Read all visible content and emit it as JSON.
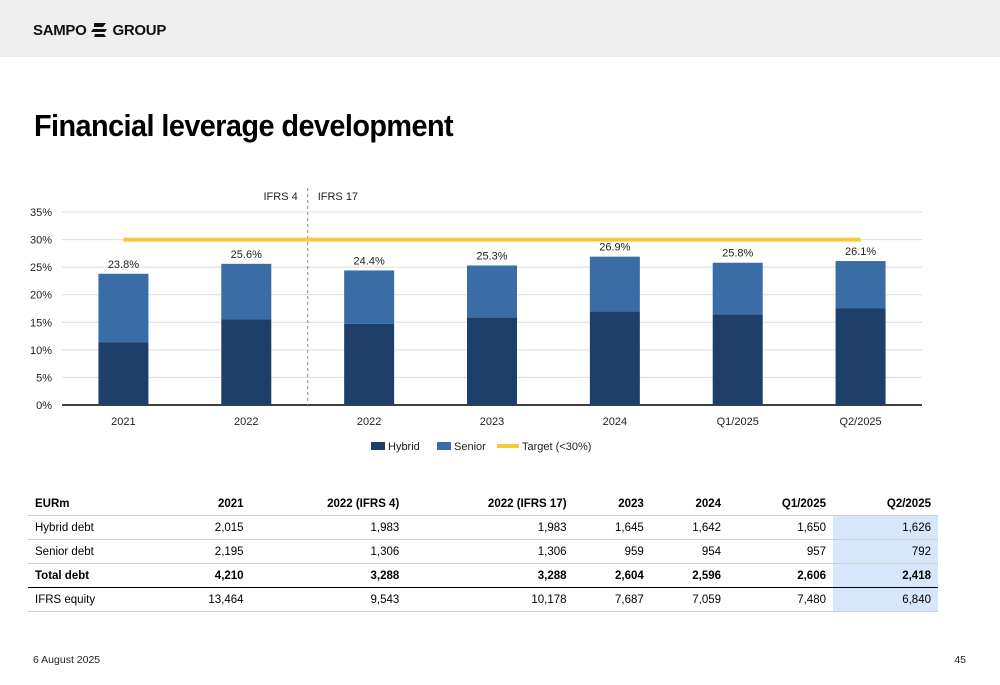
{
  "header": {
    "logo_left": "SAMPO",
    "logo_right": "GROUP"
  },
  "title": "Financial leverage development",
  "chart_data": {
    "type": "bar",
    "stacked": true,
    "categories": [
      "2021",
      "2022",
      "2022",
      "2023",
      "2024",
      "Q1/2025",
      "Q2/2025"
    ],
    "series": [
      {
        "name": "Hybrid",
        "values": [
          11.4,
          15.5,
          14.7,
          15.9,
          17.0,
          16.4,
          17.5
        ],
        "color": "#1f3f6b"
      },
      {
        "name": "Senior",
        "values": [
          12.4,
          10.1,
          9.7,
          9.4,
          9.9,
          9.4,
          8.6
        ],
        "color": "#3a6da5"
      }
    ],
    "totals": [
      "23.8%",
      "25.6%",
      "24.4%",
      "25.3%",
      "26.9%",
      "25.8%",
      "26.1%"
    ],
    "target": {
      "name": "Target (<30%)",
      "value": 30,
      "color": "#f5c93c"
    },
    "yticks": [
      "0%",
      "5%",
      "10%",
      "15%",
      "20%",
      "25%",
      "30%",
      "35%"
    ],
    "ylim": [
      0,
      35
    ],
    "standard_labels": {
      "left": "IFRS 4",
      "right": "IFRS 17"
    },
    "grid": true,
    "legend": "bottom"
  },
  "table": {
    "headers": [
      "EURm",
      "2021",
      "2022 (IFRS 4)",
      "2022 (IFRS 17)",
      "2023",
      "2024",
      "Q1/2025",
      "Q2/2025"
    ],
    "rows": [
      {
        "cells": [
          "Hybrid debt",
          "2,015",
          "1,983",
          "1,983",
          "1,645",
          "1,642",
          "1,650",
          "1,626"
        ]
      },
      {
        "cells": [
          "Senior debt",
          "2,195",
          "1,306",
          "1,306",
          "959",
          "954",
          "957",
          "792"
        ]
      },
      {
        "cells": [
          "Total debt",
          "4,210",
          "3,288",
          "3,288",
          "2,604",
          "2,596",
          "2,606",
          "2,418"
        ],
        "total": true
      },
      {
        "cells": [
          "IFRS equity",
          "13,464",
          "9,543",
          "10,178",
          "7,687",
          "7,059",
          "7,480",
          "6,840"
        ]
      }
    ]
  },
  "footer": {
    "date": "6 August 2025",
    "page": "45"
  }
}
